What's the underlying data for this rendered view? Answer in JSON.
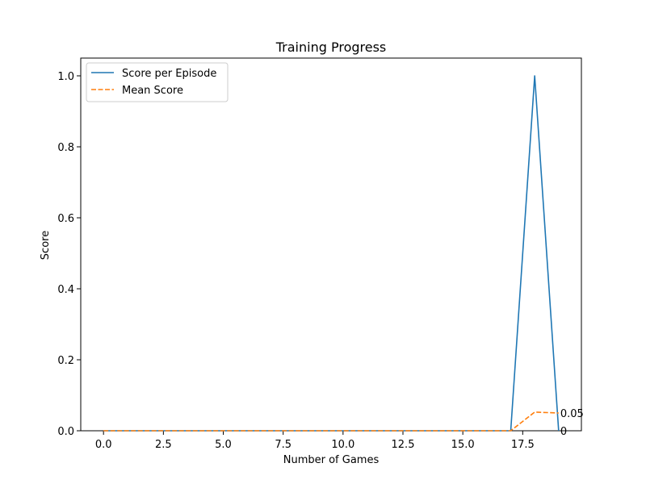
{
  "chart_data": {
    "type": "line",
    "title": "Training Progress",
    "xlabel": "Number of Games",
    "ylabel": "Score",
    "x": [
      0,
      1,
      2,
      3,
      4,
      5,
      6,
      7,
      8,
      9,
      10,
      11,
      12,
      13,
      14,
      15,
      16,
      17,
      18,
      19
    ],
    "xlim": [
      -0.95,
      19.95
    ],
    "ylim": [
      0,
      1.05
    ],
    "xticks": [
      0,
      2.5,
      5,
      7.5,
      10,
      12.5,
      15,
      17.5
    ],
    "xtick_labels": [
      "0.0",
      "2.5",
      "5.0",
      "7.5",
      "10.0",
      "12.5",
      "15.0",
      "17.5"
    ],
    "yticks": [
      0,
      0.2,
      0.4,
      0.6,
      0.8,
      1.0
    ],
    "ytick_labels": [
      "0.0",
      "0.2",
      "0.4",
      "0.6",
      "0.8",
      "1.0"
    ],
    "grid": false,
    "legend_position": "top-left",
    "series": [
      {
        "name": "Score per Episode",
        "color": "#1f77b4",
        "style": "solid",
        "values": [
          0,
          0,
          0,
          0,
          0,
          0,
          0,
          0,
          0,
          0,
          0,
          0,
          0,
          0,
          0,
          0,
          0,
          0,
          1,
          0
        ]
      },
      {
        "name": "Mean Score",
        "color": "#ff7f0e",
        "style": "dashed",
        "values": [
          0,
          0,
          0,
          0,
          0,
          0,
          0,
          0,
          0,
          0,
          0,
          0,
          0,
          0,
          0,
          0,
          0,
          0,
          0.0526,
          0.05
        ]
      }
    ],
    "annotations": [
      {
        "text": "0.05",
        "x": 19,
        "y": 0.05
      },
      {
        "text": "0",
        "x": 19,
        "y": 0
      }
    ]
  }
}
